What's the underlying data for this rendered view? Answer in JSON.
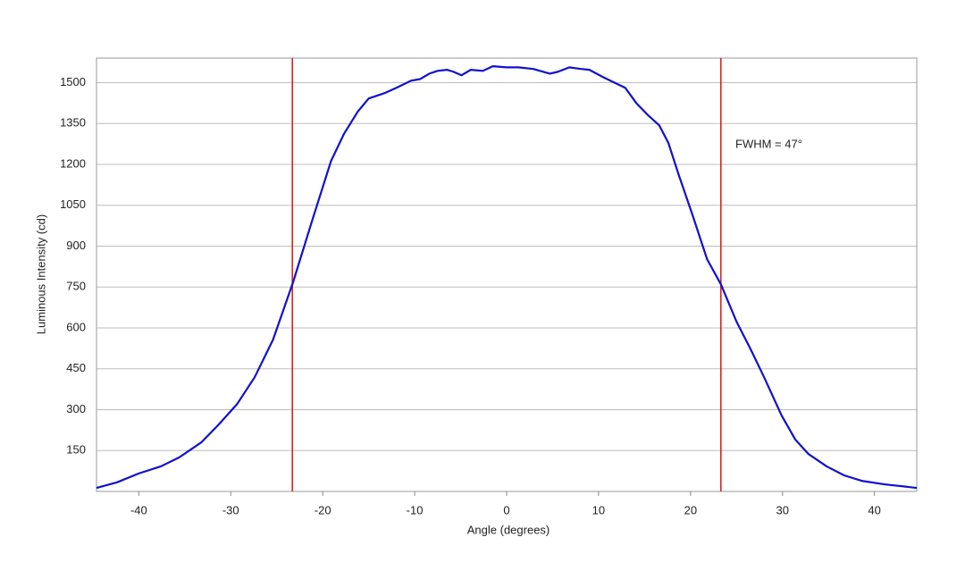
{
  "chart_data": {
    "type": "line",
    "x_label": "Angle (degrees)",
    "y_label": "Luminous Intensity (cd)",
    "annotation": "FWHM = 47°",
    "xlim": [
      -44.6,
      44.6
    ],
    "ylim": [
      0,
      1590
    ],
    "xticks": [
      -40,
      -30,
      -20,
      -10,
      0,
      10,
      20,
      30,
      40
    ],
    "yticks": [
      150,
      300,
      450,
      600,
      750,
      900,
      1050,
      1200,
      1350,
      1500
    ],
    "grid": true,
    "reference_lines": [
      {
        "value": -23.3,
        "color": "#e02020"
      },
      {
        "value": 23.3,
        "color": "#e02020"
      }
    ],
    "x": [
      -44.6,
      -42.4,
      -40,
      -37.6,
      -35.6,
      -33.2,
      -31.3,
      -29.3,
      -27.4,
      -25.4,
      -23.2,
      -21.1,
      -19.1,
      -17.7,
      -16.2,
      -15,
      -13.3,
      -11.8,
      -10.4,
      -9.4,
      -8.4,
      -7.5,
      -6.5,
      -5.8,
      -4.9,
      -3.9,
      -2.6,
      -1.5,
      0,
      1.3,
      2.9,
      4.7,
      5.6,
      6.8,
      8.1,
      9,
      10.5,
      11.9,
      12.9,
      14.1,
      15.3,
      16.6,
      17.6,
      18.7,
      20.2,
      21.8,
      23.3,
      25,
      26.5,
      28,
      29.9,
      31.4,
      32.8,
      34.8,
      36.7,
      38.6,
      41.1,
      44.6
    ],
    "series": [
      {
        "color": "#1010d0",
        "values": [
          13,
          33,
          66,
          92,
          125,
          180,
          246,
          321,
          419,
          557,
          770,
          999,
          1212,
          1311,
          1393,
          1442,
          1461,
          1484,
          1507,
          1513,
          1533,
          1543,
          1547,
          1540,
          1527,
          1547,
          1543,
          1560,
          1556,
          1556,
          1550,
          1533,
          1540,
          1556,
          1550,
          1547,
          1520,
          1497,
          1481,
          1425,
          1383,
          1343,
          1278,
          1163,
          1016,
          852,
          760,
          623,
          524,
          419,
          279,
          190,
          138,
          92,
          59,
          39,
          26,
          13
        ]
      }
    ]
  }
}
